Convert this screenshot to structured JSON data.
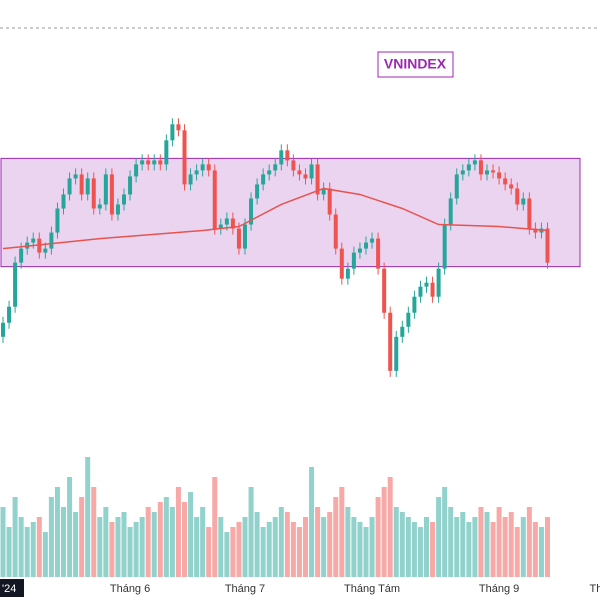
{
  "chart_data": {
    "type": "candlestick",
    "label": "VNINDEX",
    "up_color": "#26a69a",
    "down_color": "#ef5350",
    "open": [
      1192,
      1199,
      1207,
      1229,
      1236,
      1239,
      1241,
      1234,
      1236,
      1244,
      1256,
      1263,
      1271,
      1273,
      1263,
      1271,
      1256,
      1258,
      1273,
      1253,
      1258,
      1263,
      1272,
      1278,
      1280,
      1278,
      1280,
      1278,
      1290,
      1298,
      1295,
      1268,
      1273,
      1275,
      1278,
      1275,
      1246,
      1248,
      1251,
      1246,
      1236,
      1248,
      1261,
      1268,
      1273,
      1275,
      1278,
      1285,
      1280,
      1275,
      1273,
      1271,
      1278,
      1263,
      1266,
      1253,
      1236,
      1221,
      1226,
      1234,
      1236,
      1239,
      1241,
      1226,
      1204,
      1175,
      1192,
      1197,
      1204,
      1212,
      1217,
      1219,
      1212,
      1226,
      1248,
      1261,
      1273,
      1275,
      1278,
      1280,
      1273,
      1275,
      1274,
      1271,
      1268,
      1266,
      1258,
      1261,
      1246,
      1244,
      1246
    ],
    "high": [
      1202,
      1210,
      1232,
      1239,
      1242,
      1244,
      1244,
      1239,
      1247,
      1259,
      1266,
      1274,
      1276,
      1276,
      1274,
      1274,
      1261,
      1276,
      1276,
      1261,
      1266,
      1275,
      1281,
      1283,
      1283,
      1283,
      1283,
      1293,
      1301,
      1301,
      1298,
      1276,
      1278,
      1281,
      1281,
      1278,
      1251,
      1254,
      1254,
      1249,
      1251,
      1264,
      1271,
      1276,
      1278,
      1281,
      1288,
      1288,
      1283,
      1278,
      1276,
      1281,
      1281,
      1269,
      1269,
      1256,
      1239,
      1229,
      1237,
      1239,
      1242,
      1244,
      1244,
      1229,
      1207,
      1195,
      1200,
      1207,
      1215,
      1220,
      1222,
      1222,
      1229,
      1251,
      1264,
      1276,
      1278,
      1281,
      1283,
      1283,
      1278,
      1278,
      1277,
      1274,
      1271,
      1269,
      1264,
      1264,
      1249,
      1249,
      1249
    ],
    "low": [
      1189,
      1196,
      1204,
      1226,
      1233,
      1236,
      1231,
      1231,
      1233,
      1241,
      1253,
      1260,
      1268,
      1260,
      1260,
      1253,
      1253,
      1255,
      1250,
      1250,
      1255,
      1260,
      1269,
      1275,
      1275,
      1275,
      1275,
      1275,
      1287,
      1292,
      1265,
      1265,
      1270,
      1272,
      1272,
      1243,
      1243,
      1245,
      1243,
      1233,
      1233,
      1245,
      1258,
      1265,
      1270,
      1272,
      1275,
      1277,
      1272,
      1270,
      1268,
      1268,
      1260,
      1260,
      1250,
      1233,
      1218,
      1218,
      1223,
      1231,
      1233,
      1236,
      1223,
      1201,
      1172,
      1172,
      1189,
      1194,
      1201,
      1209,
      1214,
      1209,
      1209,
      1223,
      1245,
      1258,
      1270,
      1272,
      1275,
      1270,
      1270,
      1271,
      1268,
      1265,
      1263,
      1255,
      1255,
      1243,
      1241,
      1241,
      1226
    ],
    "close": [
      1199,
      1207,
      1229,
      1236,
      1239,
      1241,
      1234,
      1236,
      1244,
      1256,
      1263,
      1271,
      1273,
      1263,
      1271,
      1256,
      1258,
      1273,
      1253,
      1258,
      1263,
      1272,
      1278,
      1280,
      1278,
      1280,
      1278,
      1290,
      1298,
      1295,
      1268,
      1273,
      1275,
      1278,
      1275,
      1246,
      1248,
      1251,
      1246,
      1236,
      1248,
      1261,
      1268,
      1273,
      1275,
      1278,
      1285,
      1280,
      1275,
      1273,
      1271,
      1278,
      1263,
      1266,
      1253,
      1236,
      1221,
      1226,
      1234,
      1236,
      1239,
      1241,
      1226,
      1204,
      1175,
      1192,
      1197,
      1204,
      1212,
      1217,
      1219,
      1212,
      1226,
      1248,
      1261,
      1273,
      1275,
      1278,
      1280,
      1273,
      1275,
      1274,
      1271,
      1268,
      1266,
      1258,
      1261,
      1246,
      1244,
      1246,
      1229
    ],
    "volume": [
      700,
      500,
      800,
      600,
      500,
      550,
      600,
      450,
      800,
      900,
      700,
      1000,
      650,
      800,
      1200,
      900,
      600,
      700,
      550,
      600,
      650,
      500,
      550,
      600,
      700,
      650,
      750,
      800,
      700,
      900,
      750,
      850,
      600,
      700,
      500,
      1000,
      600,
      450,
      500,
      550,
      600,
      900,
      650,
      500,
      550,
      600,
      700,
      650,
      550,
      500,
      600,
      1100,
      700,
      600,
      650,
      800,
      900,
      700,
      600,
      550,
      500,
      600,
      800,
      900,
      1000,
      700,
      650,
      600,
      550,
      500,
      600,
      550,
      800,
      900,
      700,
      600,
      650,
      550,
      600,
      700,
      650,
      550,
      700,
      600,
      650,
      500,
      600,
      700,
      550,
      500,
      600
    ],
    "ylim": [
      1150,
      1360
    ],
    "volume_lim": [
      0,
      1200
    ],
    "ma": {
      "color": "#e8534f",
      "x": [
        0,
        16,
        33,
        39,
        46,
        53,
        59,
        66,
        72,
        82,
        90
      ],
      "values": [
        1236,
        1241,
        1245,
        1247,
        1258,
        1266,
        1263,
        1256,
        1248,
        1247,
        1245
      ]
    },
    "box": {
      "values": [
        1227,
        1281
      ],
      "color": "#9c27b0"
    },
    "xticks": [
      {
        "value": 1,
        "label": "'24"
      },
      {
        "value": 21,
        "label": "Tháng 6"
      },
      {
        "value": 40,
        "label": "Tháng 7"
      },
      {
        "value": 61,
        "label": "Tháng Tám"
      },
      {
        "value": 82,
        "label": "Tháng 9"
      },
      {
        "value": 98,
        "label": "Th"
      }
    ]
  }
}
